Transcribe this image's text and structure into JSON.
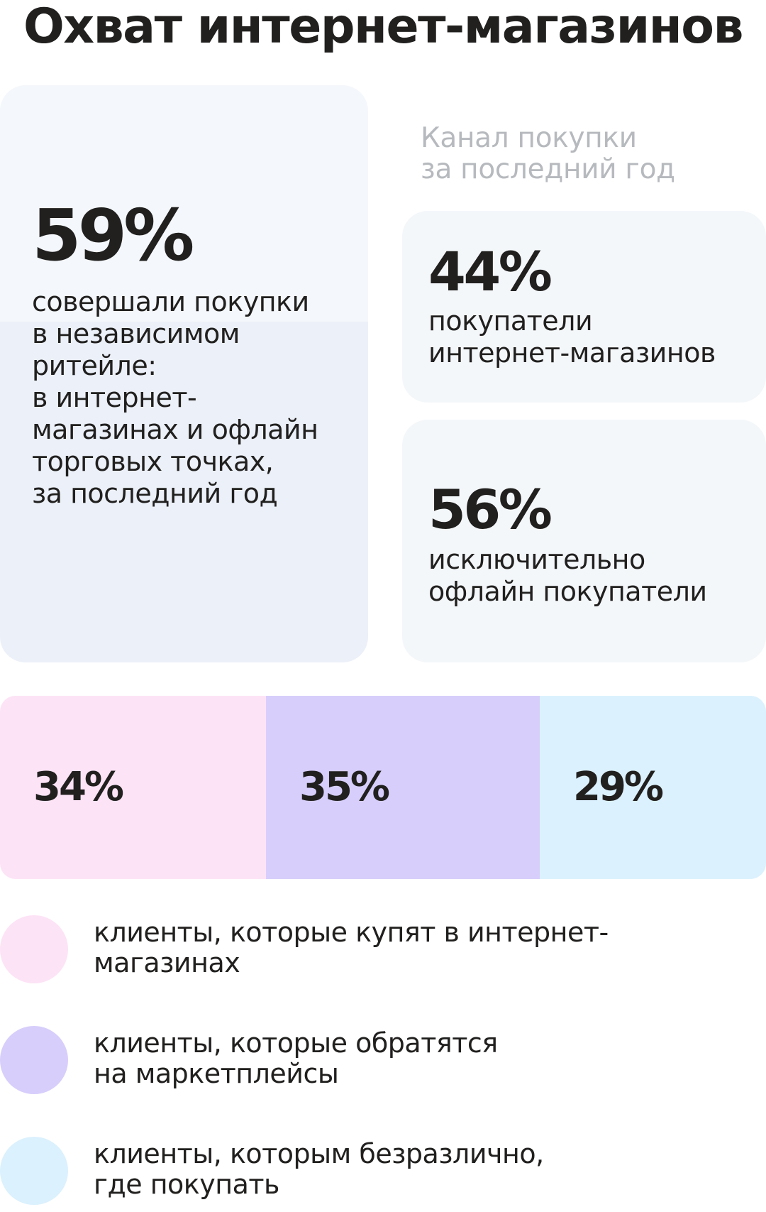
{
  "title": "Охват интернет-магазинов",
  "independent_retail": {
    "value": "59%",
    "description": "совершали покупки\nв независимом\nритейле:\nв интернет-\nмагазинах и офлайн\nторговых точках,\nза последний год"
  },
  "channel_label": "Канал покупки\nза последний год",
  "online_buyers": {
    "value": "44%",
    "description": "покупатели\nинтернет-магазинов"
  },
  "offline_buyers": {
    "value": "56%",
    "description": "исключительно\nофлайн покупатели"
  },
  "colors": {
    "text": "#21201f",
    "muted": "#b6b9bd",
    "card": "#f4f7fa",
    "online_shops": "#fde3f6",
    "marketplaces": "#d8cefb",
    "indifferent": "#dbf1fd"
  },
  "chart_data": {
    "type": "bar",
    "orientation": "horizontal-stacked",
    "categories": [
      "клиенты, которые купят в интернет-магазинах",
      "клиенты, которые обратятся на маркетплейсы",
      "клиенты, которым безразлично, где покупать"
    ],
    "values": [
      34,
      35,
      29
    ],
    "value_labels": [
      "34%",
      "35%",
      "29%"
    ],
    "colors": [
      "#fde3f6",
      "#d8cefb",
      "#dbf1fd"
    ],
    "legend": "bottom",
    "grid": false
  },
  "legend": [
    {
      "label": "клиенты, которые купят в интернет-\nмагазинах",
      "color": "#fde3f6"
    },
    {
      "label": "клиенты, которые обратятся\nна маркетплейсы",
      "color": "#d8cefb"
    },
    {
      "label": "клиенты, которым безразлично,\nгде покупать",
      "color": "#dbf1fd"
    }
  ]
}
